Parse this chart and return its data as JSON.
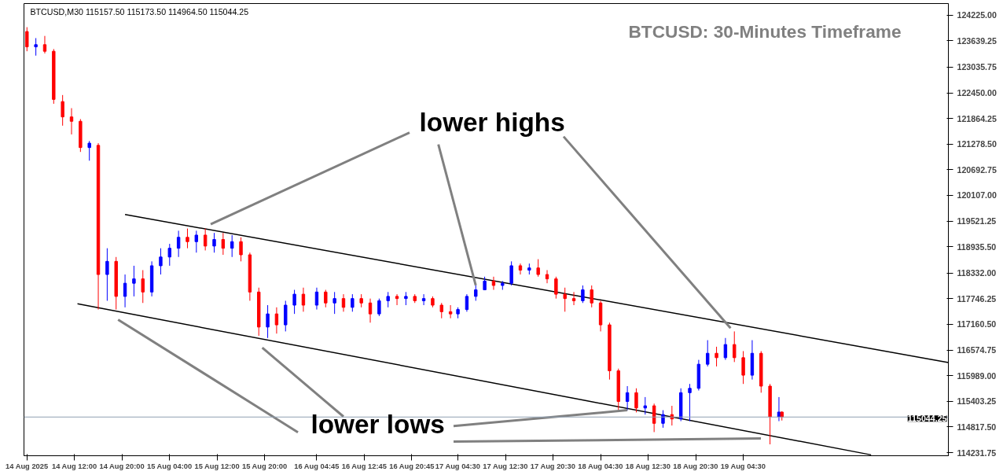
{
  "chart_data": {
    "type": "candlestick",
    "title": "BTCUSD: 30-Minutes Timeframe",
    "subtitle": "BTCUSD,M30  115157.50 115173.50 114964.50 115044.25",
    "annotations": [
      {
        "text": "lower highs",
        "x": "2025-08-17T07:30",
        "y": 118050
      },
      {
        "text": "lower lows",
        "x": "2025-08-18T09:00",
        "y": 115200
      }
    ],
    "x": [
      "2025-08-14T04:00",
      "2025-08-14T05:30",
      "2025-08-14T07:00",
      "2025-08-14T08:30",
      "2025-08-14T10:00",
      "2025-08-14T11:30",
      "2025-08-14T13:00",
      "2025-08-14T14:30",
      "2025-08-14T16:00",
      "2025-08-14T17:30",
      "2025-08-14T19:00",
      "2025-08-14T20:30",
      "2025-08-14T22:00",
      "2025-08-14T23:30",
      "2025-08-15T01:00",
      "2025-08-15T02:30",
      "2025-08-15T04:00",
      "2025-08-15T05:30",
      "2025-08-15T07:00",
      "2025-08-15T08:30",
      "2025-08-15T10:00",
      "2025-08-15T11:30",
      "2025-08-15T13:00",
      "2025-08-15T14:30",
      "2025-08-15T16:00",
      "2025-08-15T17:30",
      "2025-08-15T19:00",
      "2025-08-15T20:30",
      "2025-08-15T22:00",
      "2025-08-15T23:30",
      "2025-08-16T01:00",
      "2025-08-16T02:30",
      "2025-08-16T04:45",
      "2025-08-16T06:15",
      "2025-08-16T07:45",
      "2025-08-16T09:15",
      "2025-08-16T10:45",
      "2025-08-16T12:15",
      "2025-08-16T13:45",
      "2025-08-16T15:15",
      "2025-08-16T16:45",
      "2025-08-16T18:15",
      "2025-08-16T19:45",
      "2025-08-16T21:15",
      "2025-08-16T22:45",
      "2025-08-17T00:15",
      "2025-08-17T01:45",
      "2025-08-17T03:15",
      "2025-08-17T04:30",
      "2025-08-17T06:00",
      "2025-08-17T07:30",
      "2025-08-17T09:00",
      "2025-08-17T10:30",
      "2025-08-17T12:00",
      "2025-08-17T13:30",
      "2025-08-17T15:00",
      "2025-08-17T16:30",
      "2025-08-17T18:00",
      "2025-08-17T19:30",
      "2025-08-17T21:00",
      "2025-08-17T22:30",
      "2025-08-18T00:00",
      "2025-08-18T01:30",
      "2025-08-18T03:00",
      "2025-08-18T04:30",
      "2025-08-18T06:00",
      "2025-08-18T07:30",
      "2025-08-18T09:00",
      "2025-08-18T10:30",
      "2025-08-18T12:00",
      "2025-08-18T13:30",
      "2025-08-18T15:00",
      "2025-08-18T16:30",
      "2025-08-18T18:00",
      "2025-08-18T19:30",
      "2025-08-18T21:00",
      "2025-08-18T22:30",
      "2025-08-19T00:00",
      "2025-08-19T01:30",
      "2025-08-19T03:00",
      "2025-08-19T04:30",
      "2025-08-19T06:00",
      "2025-08-19T07:30",
      "2025-08-19T09:00",
      "2025-08-19T10:30",
      "2025-08-19T11:00"
    ],
    "ohlc": [
      [
        123850,
        123950,
        123400,
        123500
      ],
      [
        123500,
        123700,
        123300,
        123550
      ],
      [
        123550,
        123750,
        123350,
        123400
      ],
      [
        123400,
        123450,
        122200,
        122300
      ],
      [
        122250,
        122400,
        121700,
        121900
      ],
      [
        121900,
        122100,
        121500,
        121800
      ],
      [
        121800,
        121850,
        121100,
        121200
      ],
      [
        121200,
        121350,
        120900,
        121300
      ],
      [
        121250,
        121300,
        117500,
        118300
      ],
      [
        118300,
        118900,
        117700,
        118600
      ],
      [
        118600,
        118700,
        117500,
        117800
      ],
      [
        117800,
        118300,
        117550,
        118100
      ],
      [
        118100,
        118500,
        117800,
        118200
      ],
      [
        118200,
        118400,
        117650,
        117900
      ],
      [
        117900,
        118600,
        117800,
        118500
      ],
      [
        118500,
        118900,
        118300,
        118700
      ],
      [
        118700,
        119000,
        118500,
        118900
      ],
      [
        118900,
        119300,
        118700,
        119150
      ],
      [
        119150,
        119350,
        118900,
        119050
      ],
      [
        119050,
        119300,
        118800,
        119200
      ],
      [
        119200,
        119350,
        118850,
        118950
      ],
      [
        118950,
        119250,
        118800,
        119100
      ],
      [
        119100,
        119250,
        118750,
        118900
      ],
      [
        118900,
        119200,
        118700,
        119050
      ],
      [
        119050,
        119150,
        118600,
        118750
      ],
      [
        118750,
        118800,
        117700,
        117900
      ],
      [
        117900,
        118000,
        116900,
        117100
      ],
      [
        117100,
        117600,
        116850,
        117400
      ],
      [
        117400,
        117550,
        116950,
        117150
      ],
      [
        117150,
        117700,
        117000,
        117600
      ],
      [
        117600,
        117950,
        117400,
        117850
      ],
      [
        117850,
        118000,
        117450,
        117600
      ],
      [
        117600,
        118000,
        117500,
        117900
      ],
      [
        117900,
        117950,
        117550,
        117650
      ],
      [
        117650,
        117900,
        117400,
        117750
      ],
      [
        117750,
        117850,
        117450,
        117550
      ],
      [
        117550,
        117850,
        117450,
        117750
      ],
      [
        117750,
        117850,
        117550,
        117650
      ],
      [
        117650,
        117750,
        117200,
        117400
      ],
      [
        117400,
        117750,
        117350,
        117700
      ],
      [
        117700,
        117900,
        117550,
        117800
      ],
      [
        117800,
        117850,
        117600,
        117750
      ],
      [
        117750,
        117900,
        117600,
        117800
      ],
      [
        117800,
        117850,
        117650,
        117700
      ],
      [
        117700,
        117850,
        117600,
        117750
      ],
      [
        117750,
        117800,
        117550,
        117600
      ],
      [
        117600,
        117650,
        117300,
        117450
      ],
      [
        117450,
        117600,
        117300,
        117400
      ],
      [
        117400,
        117550,
        117300,
        117500
      ],
      [
        117500,
        117850,
        117450,
        117800
      ],
      [
        117800,
        118050,
        117700,
        117950
      ],
      [
        117950,
        118250,
        117950,
        118150
      ],
      [
        118150,
        118250,
        117950,
        118050
      ],
      [
        118050,
        118150,
        117950,
        118100
      ],
      [
        118100,
        118600,
        118050,
        118500
      ],
      [
        118500,
        118550,
        118300,
        118400
      ],
      [
        118400,
        118550,
        118300,
        118450
      ],
      [
        118450,
        118650,
        118250,
        118300
      ],
      [
        118300,
        118400,
        118100,
        118200
      ],
      [
        118200,
        118250,
        117750,
        117850
      ],
      [
        117850,
        118000,
        117450,
        117750
      ],
      [
        117750,
        117900,
        117600,
        117700
      ],
      [
        117700,
        118050,
        117650,
        117950
      ],
      [
        117950,
        118050,
        117550,
        117650
      ],
      [
        117650,
        117700,
        117000,
        117150
      ],
      [
        117150,
        117200,
        115900,
        116100
      ],
      [
        116100,
        116150,
        115200,
        115400
      ],
      [
        115400,
        115750,
        115200,
        115600
      ],
      [
        115600,
        115700,
        115150,
        115250
      ],
      [
        115250,
        115500,
        115100,
        115300
      ],
      [
        115300,
        115350,
        114700,
        114900
      ],
      [
        114900,
        115200,
        114800,
        115100
      ],
      [
        115100,
        115300,
        114850,
        115000
      ],
      [
        115000,
        115700,
        114950,
        115600
      ],
      [
        115600,
        115800,
        114950,
        115700
      ],
      [
        115700,
        116350,
        115650,
        116250
      ],
      [
        116250,
        116800,
        116200,
        116500
      ],
      [
        116500,
        116650,
        116200,
        116400
      ],
      [
        116400,
        116850,
        116350,
        116700
      ],
      [
        116700,
        117000,
        116300,
        116400
      ],
      [
        116400,
        116550,
        115800,
        116000
      ],
      [
        116000,
        116800,
        115900,
        116500
      ],
      [
        116500,
        116550,
        115600,
        115750
      ],
      [
        115750,
        115800,
        114420,
        115050
      ],
      [
        115050,
        115500,
        114950,
        115157.5
      ],
      [
        115157.5,
        115173.5,
        114964.5,
        115044.25
      ]
    ],
    "colors": [
      "#ff0000",
      "#0000ff",
      "#ff0000",
      "#ff0000",
      "#ff0000",
      "#ff0000",
      "#ff0000",
      "#0000ff",
      "#ff0000",
      "#0000ff",
      "#ff0000",
      "#0000ff",
      "#0000ff",
      "#ff0000",
      "#0000ff",
      "#0000ff",
      "#0000ff",
      "#0000ff",
      "#ff0000",
      "#0000ff",
      "#ff0000",
      "#0000ff",
      "#ff0000",
      "#0000ff",
      "#ff0000",
      "#ff0000",
      "#ff0000",
      "#0000ff",
      "#ff0000",
      "#0000ff",
      "#0000ff",
      "#ff0000",
      "#0000ff",
      "#ff0000",
      "#0000ff",
      "#ff0000",
      "#0000ff",
      "#ff0000",
      "#ff0000",
      "#0000ff",
      "#0000ff",
      "#ff0000",
      "#0000ff",
      "#ff0000",
      "#0000ff",
      "#ff0000",
      "#ff0000",
      "#ff0000",
      "#0000ff",
      "#0000ff",
      "#0000ff",
      "#0000ff",
      "#ff0000",
      "#0000ff",
      "#0000ff",
      "#ff0000",
      "#0000ff",
      "#ff0000",
      "#ff0000",
      "#ff0000",
      "#ff0000",
      "#ff0000",
      "#0000ff",
      "#ff0000",
      "#ff0000",
      "#ff0000",
      "#ff0000",
      "#0000ff",
      "#ff0000",
      "#0000ff",
      "#ff0000",
      "#0000ff",
      "#ff0000",
      "#0000ff",
      "#0000ff",
      "#0000ff",
      "#0000ff",
      "#ff0000",
      "#0000ff",
      "#ff0000",
      "#ff0000",
      "#0000ff",
      "#ff0000",
      "#ff0000",
      "#0000ff",
      "#ff0000"
    ],
    "series": [
      {
        "type": "line",
        "color": "#000000",
        "x": [
          "2025-08-14T20:30",
          "2025-08-20T15:00"
        ],
        "values": [
          119670,
          116290
        ]
      },
      {
        "type": "line",
        "color": "#000000",
        "x": [
          "2025-08-14T12:30",
          "2025-08-20T02:00"
        ],
        "values": [
          117630,
          114180
        ]
      }
    ],
    "ref_lines": [
      {
        "axis": "y",
        "value": 115044.25,
        "label": "115044.25",
        "color": "#8fa1b3"
      }
    ],
    "xlim": [
      "2025-08-14T03:30",
      "2025-08-20T15:00"
    ],
    "ylim": [
      114160,
      124490
    ],
    "xticks": [
      {
        "value": "2025-08-14T04:00",
        "label": "14 Aug 2025"
      },
      {
        "value": "2025-08-14T12:00",
        "label": "14 Aug 12:00"
      },
      {
        "value": "2025-08-14T20:00",
        "label": "14 Aug 20:00"
      },
      {
        "value": "2025-08-15T04:00",
        "label": "15 Aug 04:00"
      },
      {
        "value": "2025-08-15T12:00",
        "label": "15 Aug 12:00"
      },
      {
        "value": "2025-08-15T20:00",
        "label": "15 Aug 20:00"
      },
      {
        "value": "2025-08-16T04:45",
        "label": "16 Aug 04:45"
      },
      {
        "value": "2025-08-16T12:45",
        "label": "16 Aug 12:45"
      },
      {
        "value": "2025-08-16T20:45",
        "label": "16 Aug 20:45"
      },
      {
        "value": "2025-08-17T04:30",
        "label": "17 Aug 04:30"
      },
      {
        "value": "2025-08-17T12:30",
        "label": "17 Aug 12:30"
      },
      {
        "value": "2025-08-17T20:30",
        "label": "17 Aug 20:30"
      },
      {
        "value": "2025-08-18T04:30",
        "label": "18 Aug 04:30"
      },
      {
        "value": "2025-08-18T12:30",
        "label": "18 Aug 12:30"
      },
      {
        "value": "2025-08-18T20:30",
        "label": "18 Aug 20:30"
      },
      {
        "value": "2025-08-19T04:30",
        "label": "19 Aug 04:30"
      }
    ],
    "yticks": [
      {
        "value": 124225,
        "label": "124225.00"
      },
      {
        "value": 123639.25,
        "label": "123639.25"
      },
      {
        "value": 123035.75,
        "label": "123035.75"
      },
      {
        "value": 122450,
        "label": "122450.00"
      },
      {
        "value": 121864.25,
        "label": "121864.25"
      },
      {
        "value": 121278.5,
        "label": "121278.50"
      },
      {
        "value": 120692.75,
        "label": "120692.75"
      },
      {
        "value": 120107,
        "label": "120107.00"
      },
      {
        "value": 119521.25,
        "label": "119521.25"
      },
      {
        "value": 118935.5,
        "label": "118935.50"
      },
      {
        "value": 118332,
        "label": "118332.00"
      },
      {
        "value": 117746.25,
        "label": "117746.25"
      },
      {
        "value": 117160.5,
        "label": "117160.50"
      },
      {
        "value": 116574.75,
        "label": "116574.75"
      },
      {
        "value": 115989,
        "label": "115989.00"
      },
      {
        "value": 115403.25,
        "label": "115403.25"
      },
      {
        "value": 114817.5,
        "label": "114817.50"
      },
      {
        "value": 114231.75,
        "label": "114231.75"
      }
    ],
    "grid": false
  }
}
